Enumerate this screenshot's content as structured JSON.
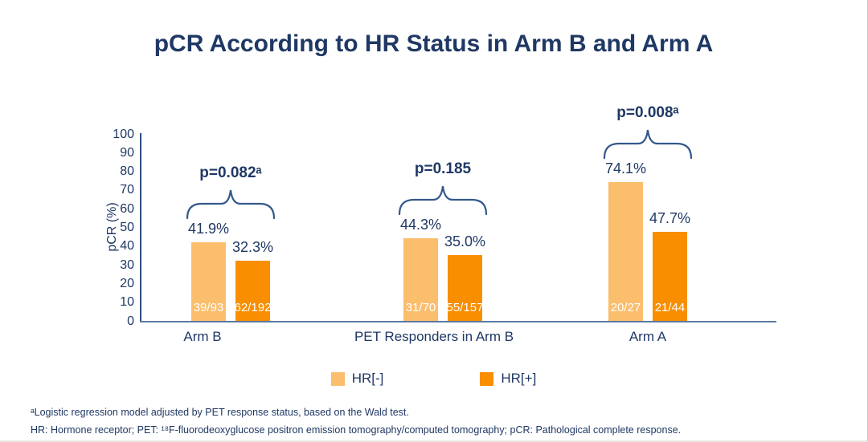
{
  "title": "pCR According to HR Status in Arm B and Arm A",
  "chart_data": {
    "type": "bar",
    "title": "pCR According to HR Status in Arm B and Arm A",
    "xlabel": "",
    "ylabel": "pCR (%)",
    "ylim": [
      0,
      100
    ],
    "ytick_step": 10,
    "grid": false,
    "legend_position": "bottom",
    "categories": [
      "Arm B",
      "PET Responders in Arm B",
      "Arm A"
    ],
    "series": [
      {
        "name": "HR[-]",
        "color": "#FBBE6D",
        "values": [
          41.9,
          44.3,
          74.1
        ],
        "value_labels": [
          "41.9%",
          "44.3%",
          "74.1%"
        ],
        "count_labels": [
          "39/93",
          "31/70",
          "20/27"
        ]
      },
      {
        "name": "HR[+]",
        "color": "#F98E00",
        "values": [
          32.3,
          35.0,
          47.7
        ],
        "value_labels": [
          "32.3%",
          "35.0%",
          "47.7%"
        ],
        "count_labels": [
          "62/192",
          "55/157",
          "21/44"
        ]
      }
    ],
    "p_values": [
      "p=0.082ᵃ",
      "p=0.185",
      "p=0.008ᵃ"
    ]
  },
  "footnotes": [
    "ᵃLogistic regression model adjusted by PET response status, based on the Wald test.",
    "HR: Hormone receptor; PET: ¹⁸F-fluorodeoxyglucose positron emission tomography/computed tomography; pCR: Pathological complete response."
  ],
  "colors": {
    "navy_text": "#1F3864",
    "hr_neg": "#FBBE6D",
    "hr_pos": "#F98E00",
    "y_axis": "#2E4E7E",
    "x_axis": "#5B79A5",
    "brace": "#35598C"
  }
}
